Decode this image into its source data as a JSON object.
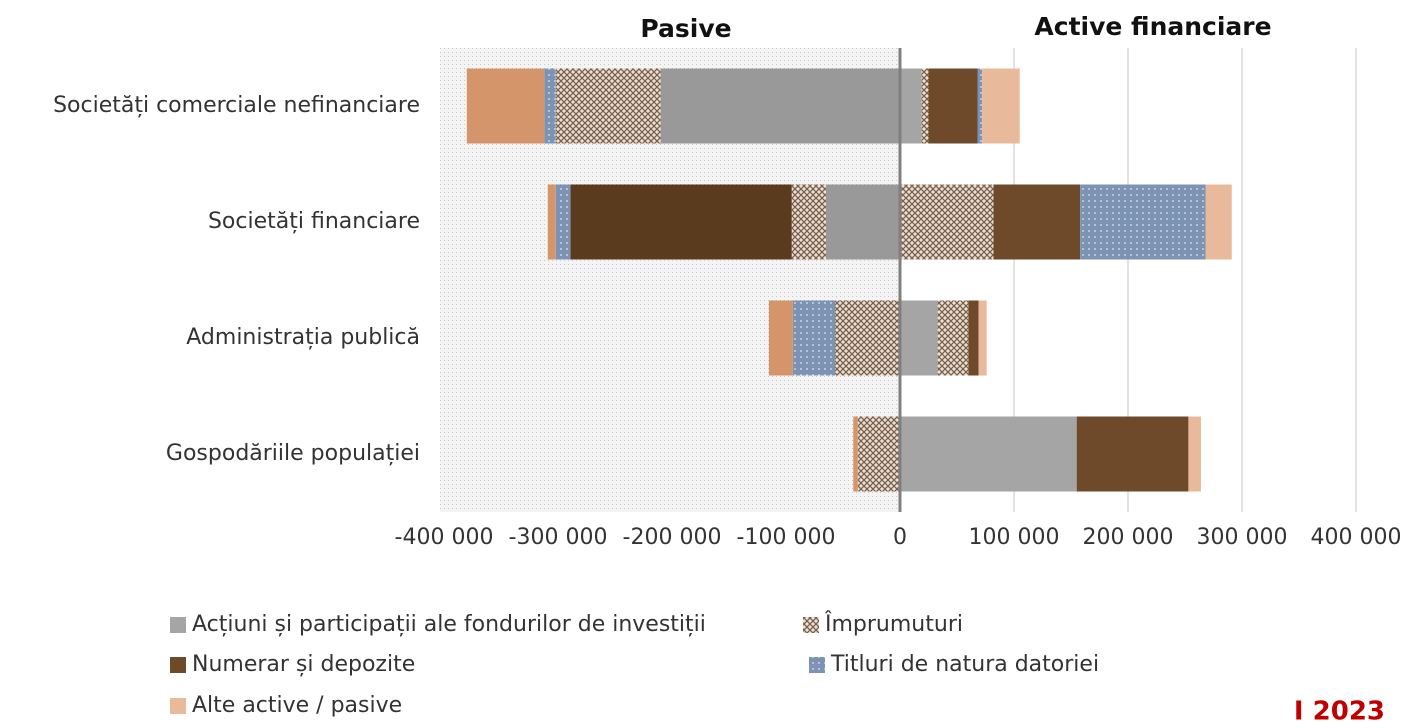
{
  "chart_data": {
    "type": "diverging-bar",
    "left_header": "Pasive",
    "right_header": "Active financiare",
    "note": "I 2023",
    "categories": [
      "Societăți comerciale nefinanciare",
      "Societăți financiare",
      "Administrația publică",
      "Gospodăriile populației"
    ],
    "series": [
      {
        "name": "Acțiuni și participații ale fondurilor de investiții",
        "color": "#a5a5a5",
        "pasive_color": "#999999",
        "values": [
          19000,
          0,
          33000,
          155000
        ],
        "pasive": [
          -210000,
          -65000,
          0,
          0
        ]
      },
      {
        "name": "Împrumuturi",
        "color": "#9c8474",
        "pattern": "crosshatch",
        "values": [
          6000,
          82000,
          27000,
          0
        ],
        "pasive": [
          -92000,
          -30000,
          -57000,
          -37000
        ]
      },
      {
        "name": "Numerar și depozite",
        "color": "#6e4a2a",
        "pasive_color": "#5a3b1e",
        "values": [
          43000,
          76000,
          9000,
          98000
        ],
        "pasive": [
          0,
          -194000,
          0,
          0
        ]
      },
      {
        "name": "Titluri de natura datoriei",
        "color": "#7c93b4",
        "pattern": "dots",
        "values": [
          4000,
          110000,
          0,
          0
        ],
        "pasive": [
          -10000,
          -13000,
          -37000,
          0
        ]
      },
      {
        "name": "Alte active / pasive",
        "color": "#e8b99a",
        "pasive_color": "#d4956a",
        "values": [
          33000,
          23000,
          7000,
          11000
        ],
        "pasive": [
          -68000,
          -7000,
          -21000,
          -4000
        ]
      }
    ],
    "xlim": [
      -400000,
      400000
    ],
    "xticks": [
      {
        "value": -400000,
        "label": "-400 000"
      },
      {
        "value": -300000,
        "label": "-300 000"
      },
      {
        "value": -200000,
        "label": "-200 000"
      },
      {
        "value": -100000,
        "label": "-100 000"
      },
      0,
      {
        "value": 100000,
        "label": "100 000"
      },
      {
        "value": 200000,
        "label": "200 000"
      },
      {
        "value": 300000,
        "label": "300 000"
      },
      {
        "value": 400000,
        "label": "400 000"
      }
    ],
    "grid": true
  }
}
